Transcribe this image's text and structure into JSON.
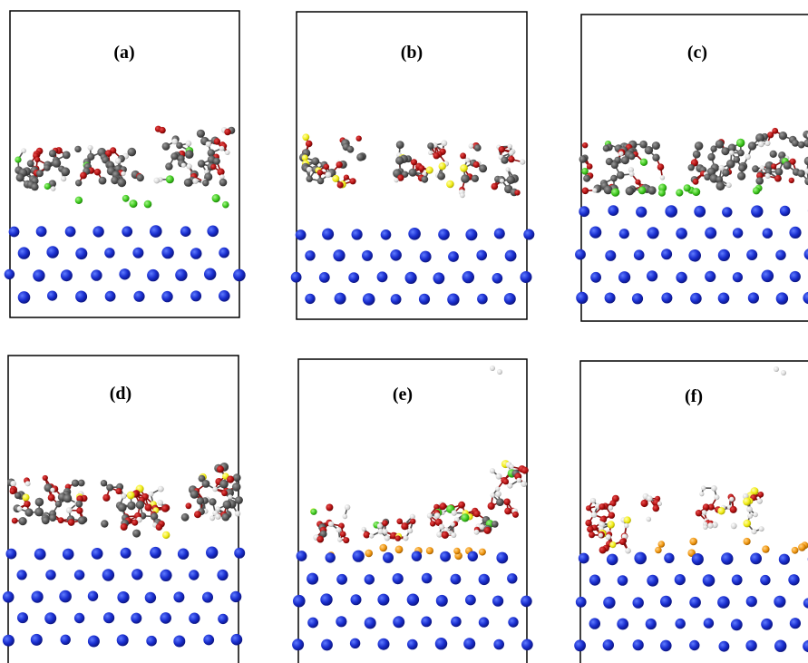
{
  "figure": {
    "panels": [
      {
        "label": "(a)",
        "variant": "a"
      },
      {
        "label": "(b)",
        "variant": "b"
      },
      {
        "label": "(c)",
        "variant": "c"
      },
      {
        "label": "(d)",
        "variant": "d"
      },
      {
        "label": "(e)",
        "variant": "e"
      },
      {
        "label": "(f)",
        "variant": "f"
      }
    ]
  },
  "colors": {
    "substrate": "#1a2fd0",
    "carbon": "#5a5a5a",
    "oxygen": "#b20f0f",
    "hydrogen": "#d8d8d8",
    "sulfur": "#f2ee16",
    "chlorine": "#3ec91e",
    "fluorine": "#f0960e",
    "bond": "#555555",
    "frame": "#000000"
  }
}
